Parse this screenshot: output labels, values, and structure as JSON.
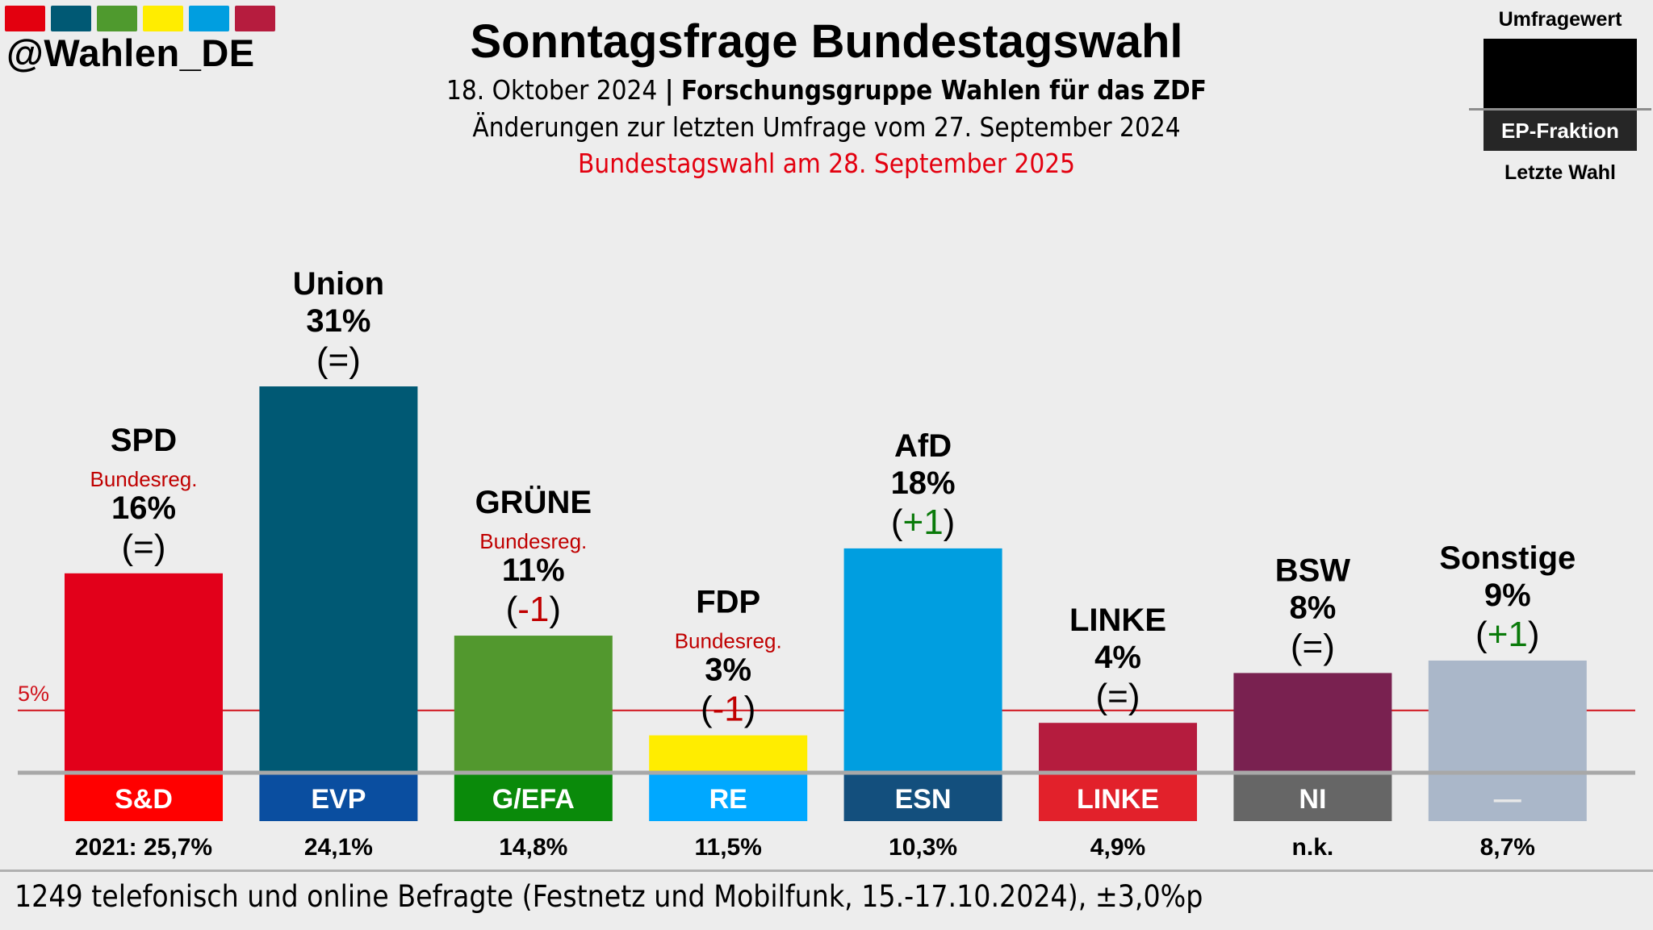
{
  "header": {
    "handle": "@Wahlen_DE",
    "logo_colors": [
      "#e3000f",
      "#005974",
      "#4f9a2e",
      "#ffed00",
      "#009ee0",
      "#b61c3e"
    ],
    "title": "Sonntagsfrage Bundestagswahl",
    "date": "18. Oktober 2024",
    "separator": "|",
    "institute": "Forschungsgruppe Wahlen für das ZDF",
    "changes_note": "Änderungen zur letzten Umfrage vom 27. September 2024",
    "election_note": "Bundestagswahl am 28. September 2025"
  },
  "legend": {
    "top_label": "Umfragewert",
    "middle_label": "EP-Fraktion",
    "bottom_label": "Letzte Wahl"
  },
  "footer": {
    "text": "1249 telefonisch und online Befragte (Festnetz und Mobilfunk, 15.-17.10.2024), ±3,0%p"
  },
  "chart_data": {
    "type": "bar",
    "title": "Sonntagsfrage Bundestagswahl",
    "xlabel": "",
    "ylabel": "",
    "ylim": [
      0,
      33
    ],
    "grid": false,
    "threshold": {
      "value": 5,
      "label": "5%",
      "color": "#d0121b"
    },
    "categories": [
      "SPD",
      "Union",
      "GRÜNE",
      "FDP",
      "AfD",
      "LINKE",
      "BSW",
      "Sonstige"
    ],
    "values": [
      16,
      31,
      11,
      3,
      18,
      4,
      8,
      9
    ],
    "value_labels": [
      "16%",
      "31%",
      "11%",
      "3%",
      "18%",
      "4%",
      "8%",
      "9%"
    ],
    "changes": [
      "=",
      "=",
      "-1",
      "-1",
      "+1",
      "=",
      "=",
      "+1"
    ],
    "change_colors": [
      "#000000",
      "#000000",
      "#c00000",
      "#c00000",
      "#0a7a0a",
      "#000000",
      "#000000",
      "#0a7a0a"
    ],
    "government_note": [
      "Bundesreg.",
      "",
      "Bundesreg.",
      "Bundesreg.",
      "",
      "",
      "",
      ""
    ],
    "bar_colors": [
      "#e2001a",
      "#005974",
      "#52982e",
      "#ffed00",
      "#009ee0",
      "#b51c3e",
      "#792150",
      "#aab7c9"
    ],
    "ep_groups": [
      "S&D",
      "EVP",
      "G/EFA",
      "RE",
      "ESN",
      "LINKE",
      "NI",
      "—"
    ],
    "ep_colors": [
      "#ff0000",
      "#0a4ea0",
      "#0a8a0a",
      "#00a8ff",
      "#134f7d",
      "#e2212b",
      "#666666",
      "#aab7c9"
    ],
    "last_election": [
      "2021: 25,7%",
      "24,1%",
      "14,8%",
      "11,5%",
      "10,3%",
      "4,9%",
      "n.k.",
      "8,7%"
    ]
  }
}
